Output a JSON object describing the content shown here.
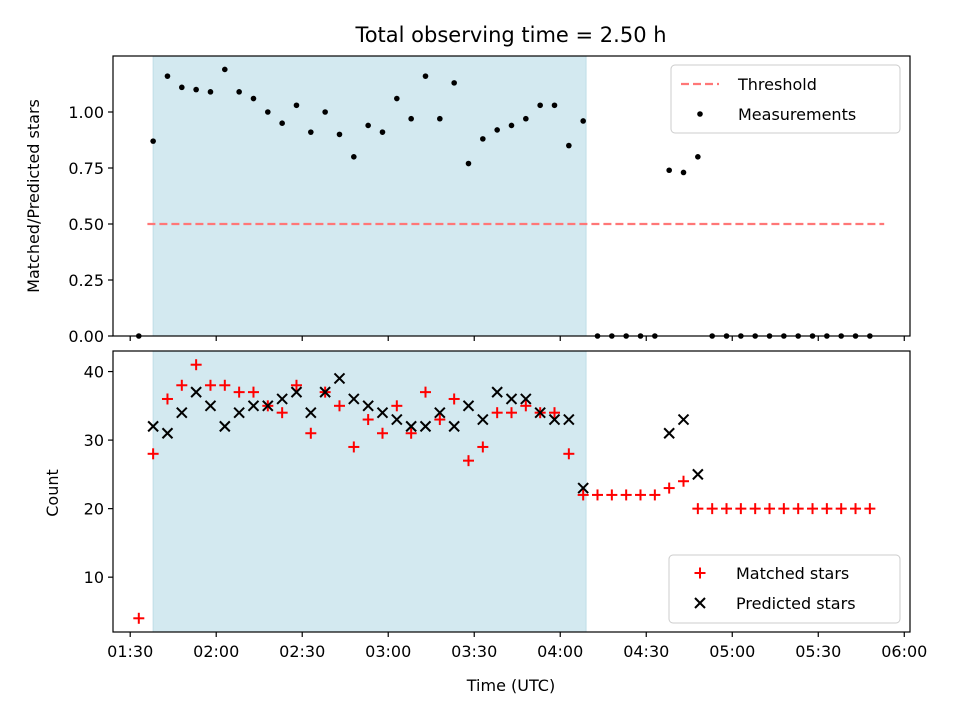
{
  "chart_data": [
    {
      "type": "scatter",
      "title": "Total observing time = 2.50 h",
      "xlabel": "",
      "ylabel": "Matched/Predicted stars",
      "xlim": [
        "01:24",
        "06:02"
      ],
      "ylim": [
        0,
        1.25
      ],
      "yticks": [
        "0.00",
        "0.25",
        "0.50",
        "0.75",
        "1.00"
      ],
      "shaded_interval": {
        "start": "01:38",
        "end": "04:09",
        "color": "#d3e9f0"
      },
      "threshold": {
        "name": "Threshold",
        "value": 0.5,
        "x_start": "01:36",
        "x_end": "05:53",
        "color": "#ff7777"
      },
      "legend_position": "upper right",
      "series": [
        {
          "name": "Measurements",
          "color": "#000000",
          "x": [
            "01:33",
            "01:38",
            "01:43",
            "01:48",
            "01:53",
            "01:58",
            "02:03",
            "02:08",
            "02:13",
            "02:18",
            "02:23",
            "02:28",
            "02:33",
            "02:38",
            "02:43",
            "02:48",
            "02:53",
            "02:58",
            "03:03",
            "03:08",
            "03:13",
            "03:18",
            "03:23",
            "03:28",
            "03:33",
            "03:38",
            "03:43",
            "03:48",
            "03:53",
            "03:58",
            "04:03",
            "04:08",
            "04:13",
            "04:18",
            "04:23",
            "04:28",
            "04:33",
            "04:38",
            "04:43",
            "04:48",
            "04:53",
            "04:58",
            "05:03",
            "05:08",
            "05:13",
            "05:18",
            "05:23",
            "05:28",
            "05:33",
            "05:38",
            "05:43",
            "05:48"
          ],
          "values": [
            0.0,
            0.87,
            1.16,
            1.11,
            1.1,
            1.09,
            1.19,
            1.09,
            1.06,
            1.0,
            0.95,
            1.03,
            0.91,
            1.0,
            0.9,
            0.8,
            0.94,
            0.91,
            1.06,
            0.97,
            1.16,
            0.97,
            1.13,
            0.77,
            0.88,
            0.92,
            0.94,
            0.97,
            1.03,
            1.03,
            0.85,
            0.96,
            0.0,
            0.0,
            0.0,
            0.0,
            0.0,
            0.74,
            0.73,
            0.8,
            0.0,
            0.0,
            0.0,
            0.0,
            0.0,
            0.0,
            0.0,
            0.0,
            0.0,
            0.0,
            0.0,
            0.0
          ]
        }
      ]
    },
    {
      "type": "scatter",
      "xlabel": "Time (UTC)",
      "ylabel": "Count",
      "xlim": [
        "01:24",
        "06:02"
      ],
      "ylim": [
        2,
        43
      ],
      "yticks": [
        "10",
        "20",
        "30",
        "40"
      ],
      "xticks": [
        "01:30",
        "02:00",
        "02:30",
        "03:00",
        "03:30",
        "04:00",
        "04:30",
        "05:00",
        "05:30",
        "06:00"
      ],
      "shaded_interval": {
        "start": "01:38",
        "end": "04:09",
        "color": "#d3e9f0"
      },
      "legend_position": "lower right",
      "series": [
        {
          "name": "Matched stars",
          "marker": "+",
          "color": "#ff0000",
          "x": [
            "01:33",
            "01:38",
            "01:43",
            "01:48",
            "01:53",
            "01:58",
            "02:03",
            "02:08",
            "02:13",
            "02:18",
            "02:23",
            "02:28",
            "02:33",
            "02:38",
            "02:43",
            "02:48",
            "02:53",
            "02:58",
            "03:03",
            "03:08",
            "03:13",
            "03:18",
            "03:23",
            "03:28",
            "03:33",
            "03:38",
            "03:43",
            "03:48",
            "03:53",
            "03:58",
            "04:03",
            "04:08",
            "04:13",
            "04:18",
            "04:23",
            "04:28",
            "04:33",
            "04:38",
            "04:43",
            "04:48",
            "04:53",
            "04:58",
            "05:03",
            "05:08",
            "05:13",
            "05:18",
            "05:23",
            "05:28",
            "05:33",
            "05:38",
            "05:43",
            "05:48"
          ],
          "values": [
            4,
            28,
            36,
            38,
            41,
            38,
            38,
            37,
            37,
            35,
            34,
            38,
            31,
            37,
            35,
            29,
            33,
            31,
            35,
            31,
            37,
            33,
            36,
            27,
            29,
            34,
            34,
            35,
            34,
            34,
            28,
            22,
            22,
            22,
            22,
            22,
            22,
            23,
            24,
            20,
            20,
            20,
            20,
            20,
            20,
            20,
            20,
            20,
            20,
            20,
            20,
            20
          ]
        },
        {
          "name": "Predicted stars",
          "marker": "x",
          "color": "#000000",
          "x": [
            "01:38",
            "01:43",
            "01:48",
            "01:53",
            "01:58",
            "02:03",
            "02:08",
            "02:13",
            "02:18",
            "02:23",
            "02:28",
            "02:33",
            "02:38",
            "02:43",
            "02:48",
            "02:53",
            "02:58",
            "03:03",
            "03:08",
            "03:13",
            "03:18",
            "03:23",
            "03:28",
            "03:33",
            "03:38",
            "03:43",
            "03:48",
            "03:53",
            "03:58",
            "04:03",
            "04:08",
            "04:38",
            "04:43",
            "04:48"
          ],
          "values": [
            32,
            31,
            34,
            37,
            35,
            32,
            34,
            35,
            35,
            36,
            37,
            34,
            37,
            39,
            36,
            35,
            34,
            33,
            32,
            32,
            34,
            32,
            35,
            33,
            37,
            36,
            36,
            34,
            33,
            33,
            23,
            31,
            33,
            25
          ]
        }
      ]
    }
  ]
}
